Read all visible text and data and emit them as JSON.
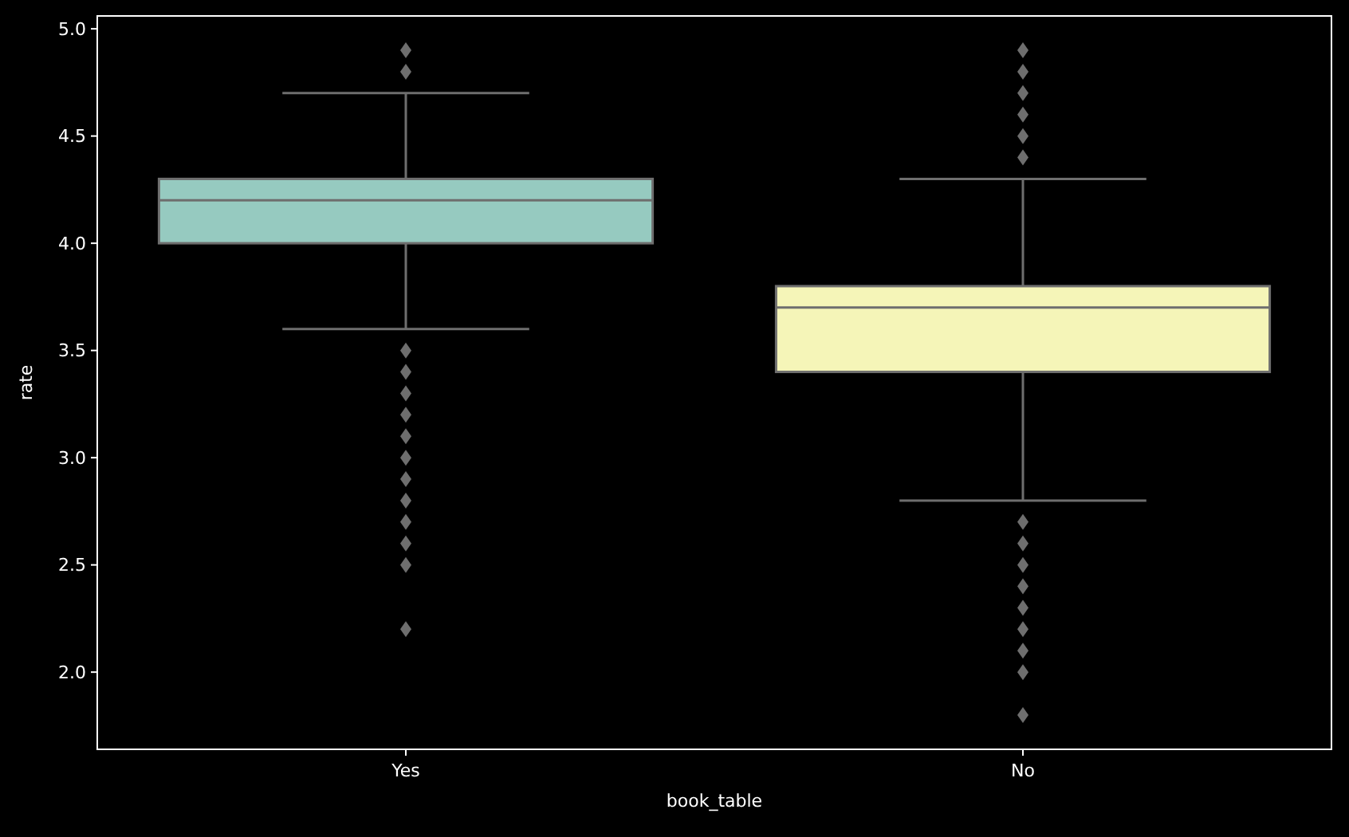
{
  "chart_data": {
    "type": "box",
    "xlabel": "book_table",
    "ylabel": "rate",
    "categories": [
      "Yes",
      "No"
    ],
    "colors": [
      "#96cac0",
      "#f5f5b8"
    ],
    "boxes": [
      {
        "low": 3.6,
        "q1": 4.0,
        "median": 4.2,
        "q3": 4.3,
        "high": 4.7,
        "outliers": [
          4.8,
          4.9,
          3.5,
          3.4,
          3.3,
          3.2,
          3.1,
          3.0,
          2.9,
          2.8,
          2.7,
          2.6,
          2.5,
          2.2
        ]
      },
      {
        "low": 2.8,
        "q1": 3.4,
        "median": 3.7,
        "q3": 3.8,
        "high": 4.3,
        "outliers": [
          4.4,
          4.5,
          4.6,
          4.7,
          4.8,
          4.9,
          2.7,
          2.6,
          2.5,
          2.4,
          2.3,
          2.2,
          2.1,
          2.0,
          1.8
        ]
      }
    ],
    "ylim": [
      1.64,
      5.06
    ],
    "yticks": [
      {
        "value": 2,
        "label": "2.0"
      },
      {
        "value": 2.5,
        "label": "2.5"
      },
      {
        "value": 3,
        "label": "3.0"
      },
      {
        "value": 3.5,
        "label": "3.5"
      },
      {
        "value": 4,
        "label": "4.0"
      },
      {
        "value": 4.5,
        "label": "4.5"
      },
      {
        "value": 5,
        "label": "5.0"
      }
    ],
    "grid": false
  }
}
